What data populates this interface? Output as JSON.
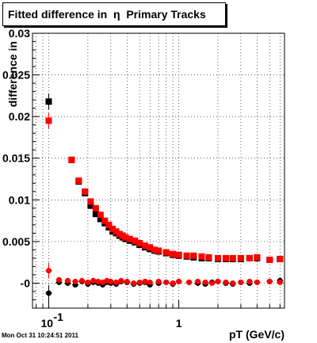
{
  "title": "Fitted difference in  η  Primary Tracks",
  "timestamp": "Mon Oct 31 10:24:51 2011",
  "chart_data": {
    "type": "scatter",
    "title": "Fitted difference in  η  Primary Tracks",
    "xlabel": "pT (GeV/c)",
    "ylabel": "difference in",
    "x_scale": "log",
    "xlim": [
      0.075,
      6.5
    ],
    "ylim": [
      -0.003,
      0.03
    ],
    "grid": true,
    "y_ticks": [
      "-0",
      "0.005",
      "0.01",
      "0.015",
      "0.02",
      "0.025",
      "0.03"
    ],
    "x_tick_labels": [
      {
        "value": 0.1,
        "base": "10",
        "exp": "-1"
      },
      {
        "value": 1,
        "label": "1"
      }
    ],
    "series": [
      {
        "color": "#000000",
        "x": [
          0.1,
          0.15,
          0.17,
          0.19,
          0.21,
          0.23,
          0.25,
          0.27,
          0.29,
          0.31,
          0.33,
          0.35,
          0.37,
          0.39,
          0.42,
          0.46,
          0.5,
          0.55,
          0.6,
          0.65,
          0.7,
          0.8,
          0.9,
          1.0,
          1.15,
          1.3,
          1.5,
          1.7,
          2.0,
          2.3,
          2.6,
          3.0,
          3.5,
          4.0,
          5.0,
          6.0
        ],
        "y": [
          0.0218,
          0.0148,
          0.0122,
          0.0108,
          0.0093,
          0.0083,
          0.0077,
          0.0072,
          0.0067,
          0.0062,
          0.006,
          0.0057,
          0.0055,
          0.0053,
          0.0051,
          0.0049,
          0.0046,
          0.0043,
          0.0041,
          0.0039,
          0.0038,
          0.0036,
          0.0034,
          0.0033,
          0.0032,
          0.0031,
          0.003,
          0.003,
          0.0029,
          0.0029,
          0.0029,
          0.0029,
          0.003,
          0.003,
          0.0028,
          0.0029
        ]
      },
      {
        "color": "#ff0000",
        "x": [
          0.1,
          0.15,
          0.17,
          0.19,
          0.21,
          0.23,
          0.25,
          0.27,
          0.29,
          0.31,
          0.33,
          0.35,
          0.37,
          0.39,
          0.42,
          0.46,
          0.5,
          0.55,
          0.6,
          0.65,
          0.7,
          0.8,
          0.9,
          1.0,
          1.15,
          1.3,
          1.5,
          1.7,
          2.0,
          2.3,
          2.6,
          3.0,
          3.5,
          4.0,
          5.0,
          6.0
        ],
        "y": [
          0.0195,
          0.0148,
          0.0123,
          0.011,
          0.0098,
          0.009,
          0.0082,
          0.0075,
          0.007,
          0.0065,
          0.0062,
          0.0059,
          0.0057,
          0.0055,
          0.0053,
          0.0051,
          0.0048,
          0.0045,
          0.0043,
          0.004,
          0.0039,
          0.0037,
          0.0035,
          0.0034,
          0.0033,
          0.0033,
          0.0032,
          0.0031,
          0.003,
          0.003,
          0.003,
          0.003,
          0.003,
          0.0031,
          0.0028,
          0.0029
        ]
      },
      {
        "color": "#000000",
        "x": [
          0.1,
          0.12,
          0.14,
          0.16,
          0.18,
          0.2,
          0.22,
          0.24,
          0.26,
          0.28,
          0.3,
          0.33,
          0.36,
          0.4,
          0.45,
          0.5,
          0.55,
          0.6,
          0.7,
          0.8,
          0.9,
          1.0,
          1.2,
          1.4,
          1.6,
          1.8,
          2.0,
          2.3,
          2.6,
          3.0,
          3.5,
          4.0,
          5.0,
          6.0
        ],
        "y": [
          -0.0012,
          0.0001,
          0.0,
          -0.0002,
          0.0002,
          -0.0001,
          0.0001,
          0.0,
          -0.0002,
          0.0001,
          0.0,
          -0.0001,
          0.0002,
          0.0001,
          -0.0001,
          0.0,
          0.0001,
          -0.0002,
          0.0,
          0.0001,
          -0.0001,
          0.0002,
          0.0001,
          0.0,
          -0.0001,
          0.0001,
          0.0002,
          0.0,
          -0.0001,
          0.0001,
          0.0,
          0.0001,
          0.0002,
          0.0003
        ]
      },
      {
        "color": "#ff0000",
        "x": [
          0.1,
          0.12,
          0.14,
          0.16,
          0.18,
          0.2,
          0.22,
          0.24,
          0.26,
          0.28,
          0.3,
          0.33,
          0.36,
          0.4,
          0.45,
          0.5,
          0.55,
          0.6,
          0.7,
          0.8,
          0.9,
          1.0,
          1.2,
          1.4,
          1.6,
          1.8,
          2.0,
          2.3,
          2.6,
          3.0,
          3.5,
          4.0,
          5.0,
          6.0
        ],
        "y": [
          0.0015,
          0.0004,
          0.0003,
          0.0002,
          0.0003,
          0.0001,
          0.0003,
          0.0002,
          0.0001,
          0.0003,
          0.0002,
          0.0001,
          0.0003,
          0.0002,
          0.0,
          0.0001,
          0.0002,
          0.0001,
          0.0002,
          0.0001,
          0.0,
          0.0002,
          0.0001,
          0.0002,
          0.0001,
          0.0,
          0.0002,
          0.0001,
          0.0,
          0.0001,
          0.0002,
          0.0001,
          0.0002,
          0.0001
        ]
      }
    ]
  }
}
